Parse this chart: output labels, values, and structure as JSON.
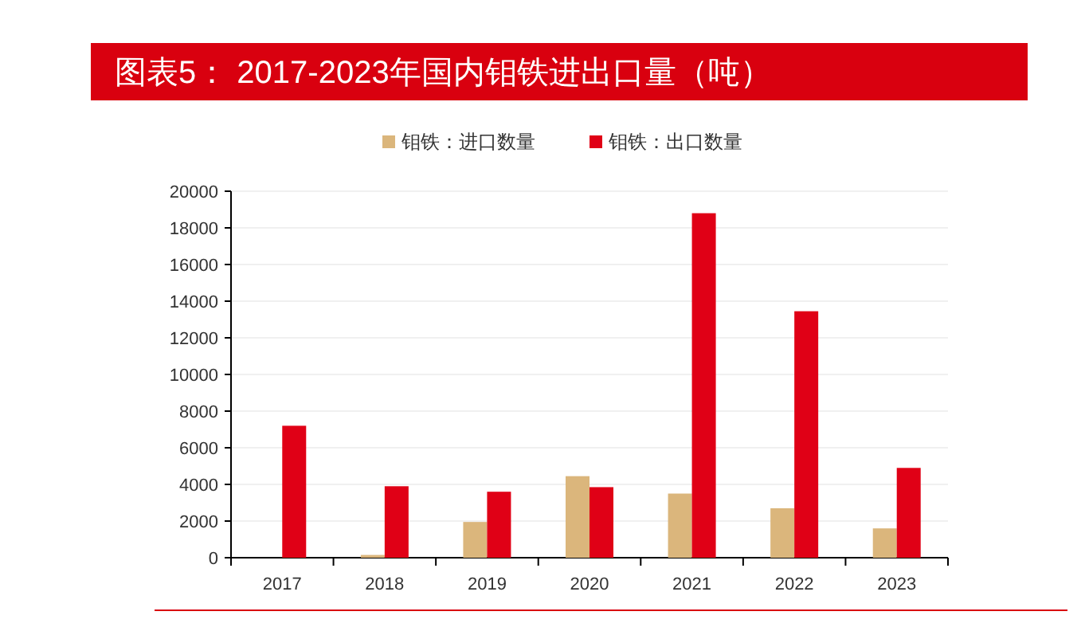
{
  "chart_data": {
    "type": "bar",
    "title": "图表5： 2017-2023年国内钼铁进出口量（吨）",
    "categories": [
      "2017",
      "2018",
      "2019",
      "2020",
      "2021",
      "2022",
      "2023"
    ],
    "series": [
      {
        "name": "钼铁：进口数量",
        "color": "#dbb67c",
        "values": [
          null,
          150,
          1950,
          4450,
          3500,
          2700,
          1600
        ]
      },
      {
        "name": "钼铁：出口数量",
        "color": "#e00016",
        "values": [
          7200,
          3900,
          3600,
          3850,
          18800,
          13450,
          4900
        ]
      }
    ],
    "ylim": [
      0,
      20000
    ],
    "yticks": [
      0,
      2000,
      4000,
      6000,
      8000,
      10000,
      12000,
      14000,
      16000,
      18000,
      20000
    ],
    "grid": "y",
    "legend": "top"
  }
}
